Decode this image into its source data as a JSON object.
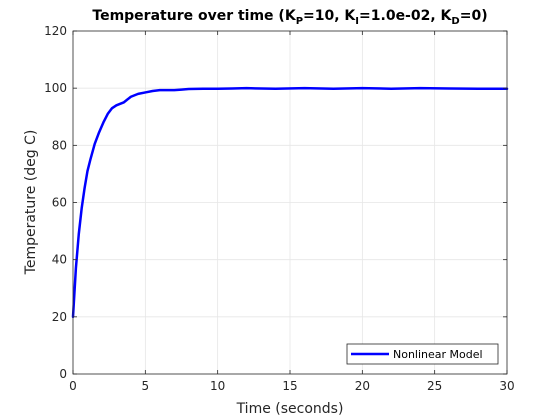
{
  "chart_data": {
    "type": "line",
    "title": {
      "prefix": "Temperature over time (K",
      "kp_sub": "P",
      "kp_mid": "=10, K",
      "ki_sub": "I",
      "ki_mid": "=1.0e-02, K",
      "kd_sub": "D",
      "suffix": "=0)"
    },
    "xlabel": "Time (seconds)",
    "ylabel": "Temperature (deg C)",
    "xlim": [
      0,
      30
    ],
    "ylim": [
      0,
      120
    ],
    "xticks": [
      "0",
      "5",
      "10",
      "15",
      "20",
      "25",
      "30"
    ],
    "yticks": [
      "0",
      "20",
      "40",
      "60",
      "80",
      "100",
      "120"
    ],
    "grid": true,
    "legend_position": "bottom-right",
    "series": [
      {
        "name": "Nonlinear Model",
        "color": "#0000ff",
        "x": [
          0,
          0.2,
          0.4,
          0.6,
          0.8,
          1.0,
          1.2,
          1.5,
          1.8,
          2.1,
          2.4,
          2.7,
          3.0,
          3.5,
          4.0,
          4.5,
          5.0,
          5.5,
          6.0,
          6.5,
          7.0,
          7.5,
          8.0,
          9.0,
          10.0,
          11.0,
          12.0,
          14.0,
          16.0,
          18.0,
          20.0,
          22.0,
          24.0,
          26.0,
          28.0,
          30.0
        ],
        "y": [
          20,
          37,
          49,
          58,
          65,
          71,
          75,
          80.5,
          84.5,
          88,
          91,
          93,
          94,
          95,
          97,
          98,
          98.5,
          99,
          99.3,
          99.3,
          99.3,
          99.5,
          99.7,
          99.8,
          99.8,
          99.9,
          100,
          99.8,
          100,
          99.8,
          100,
          99.8,
          100,
          99.9,
          99.8,
          99.8
        ]
      }
    ]
  }
}
